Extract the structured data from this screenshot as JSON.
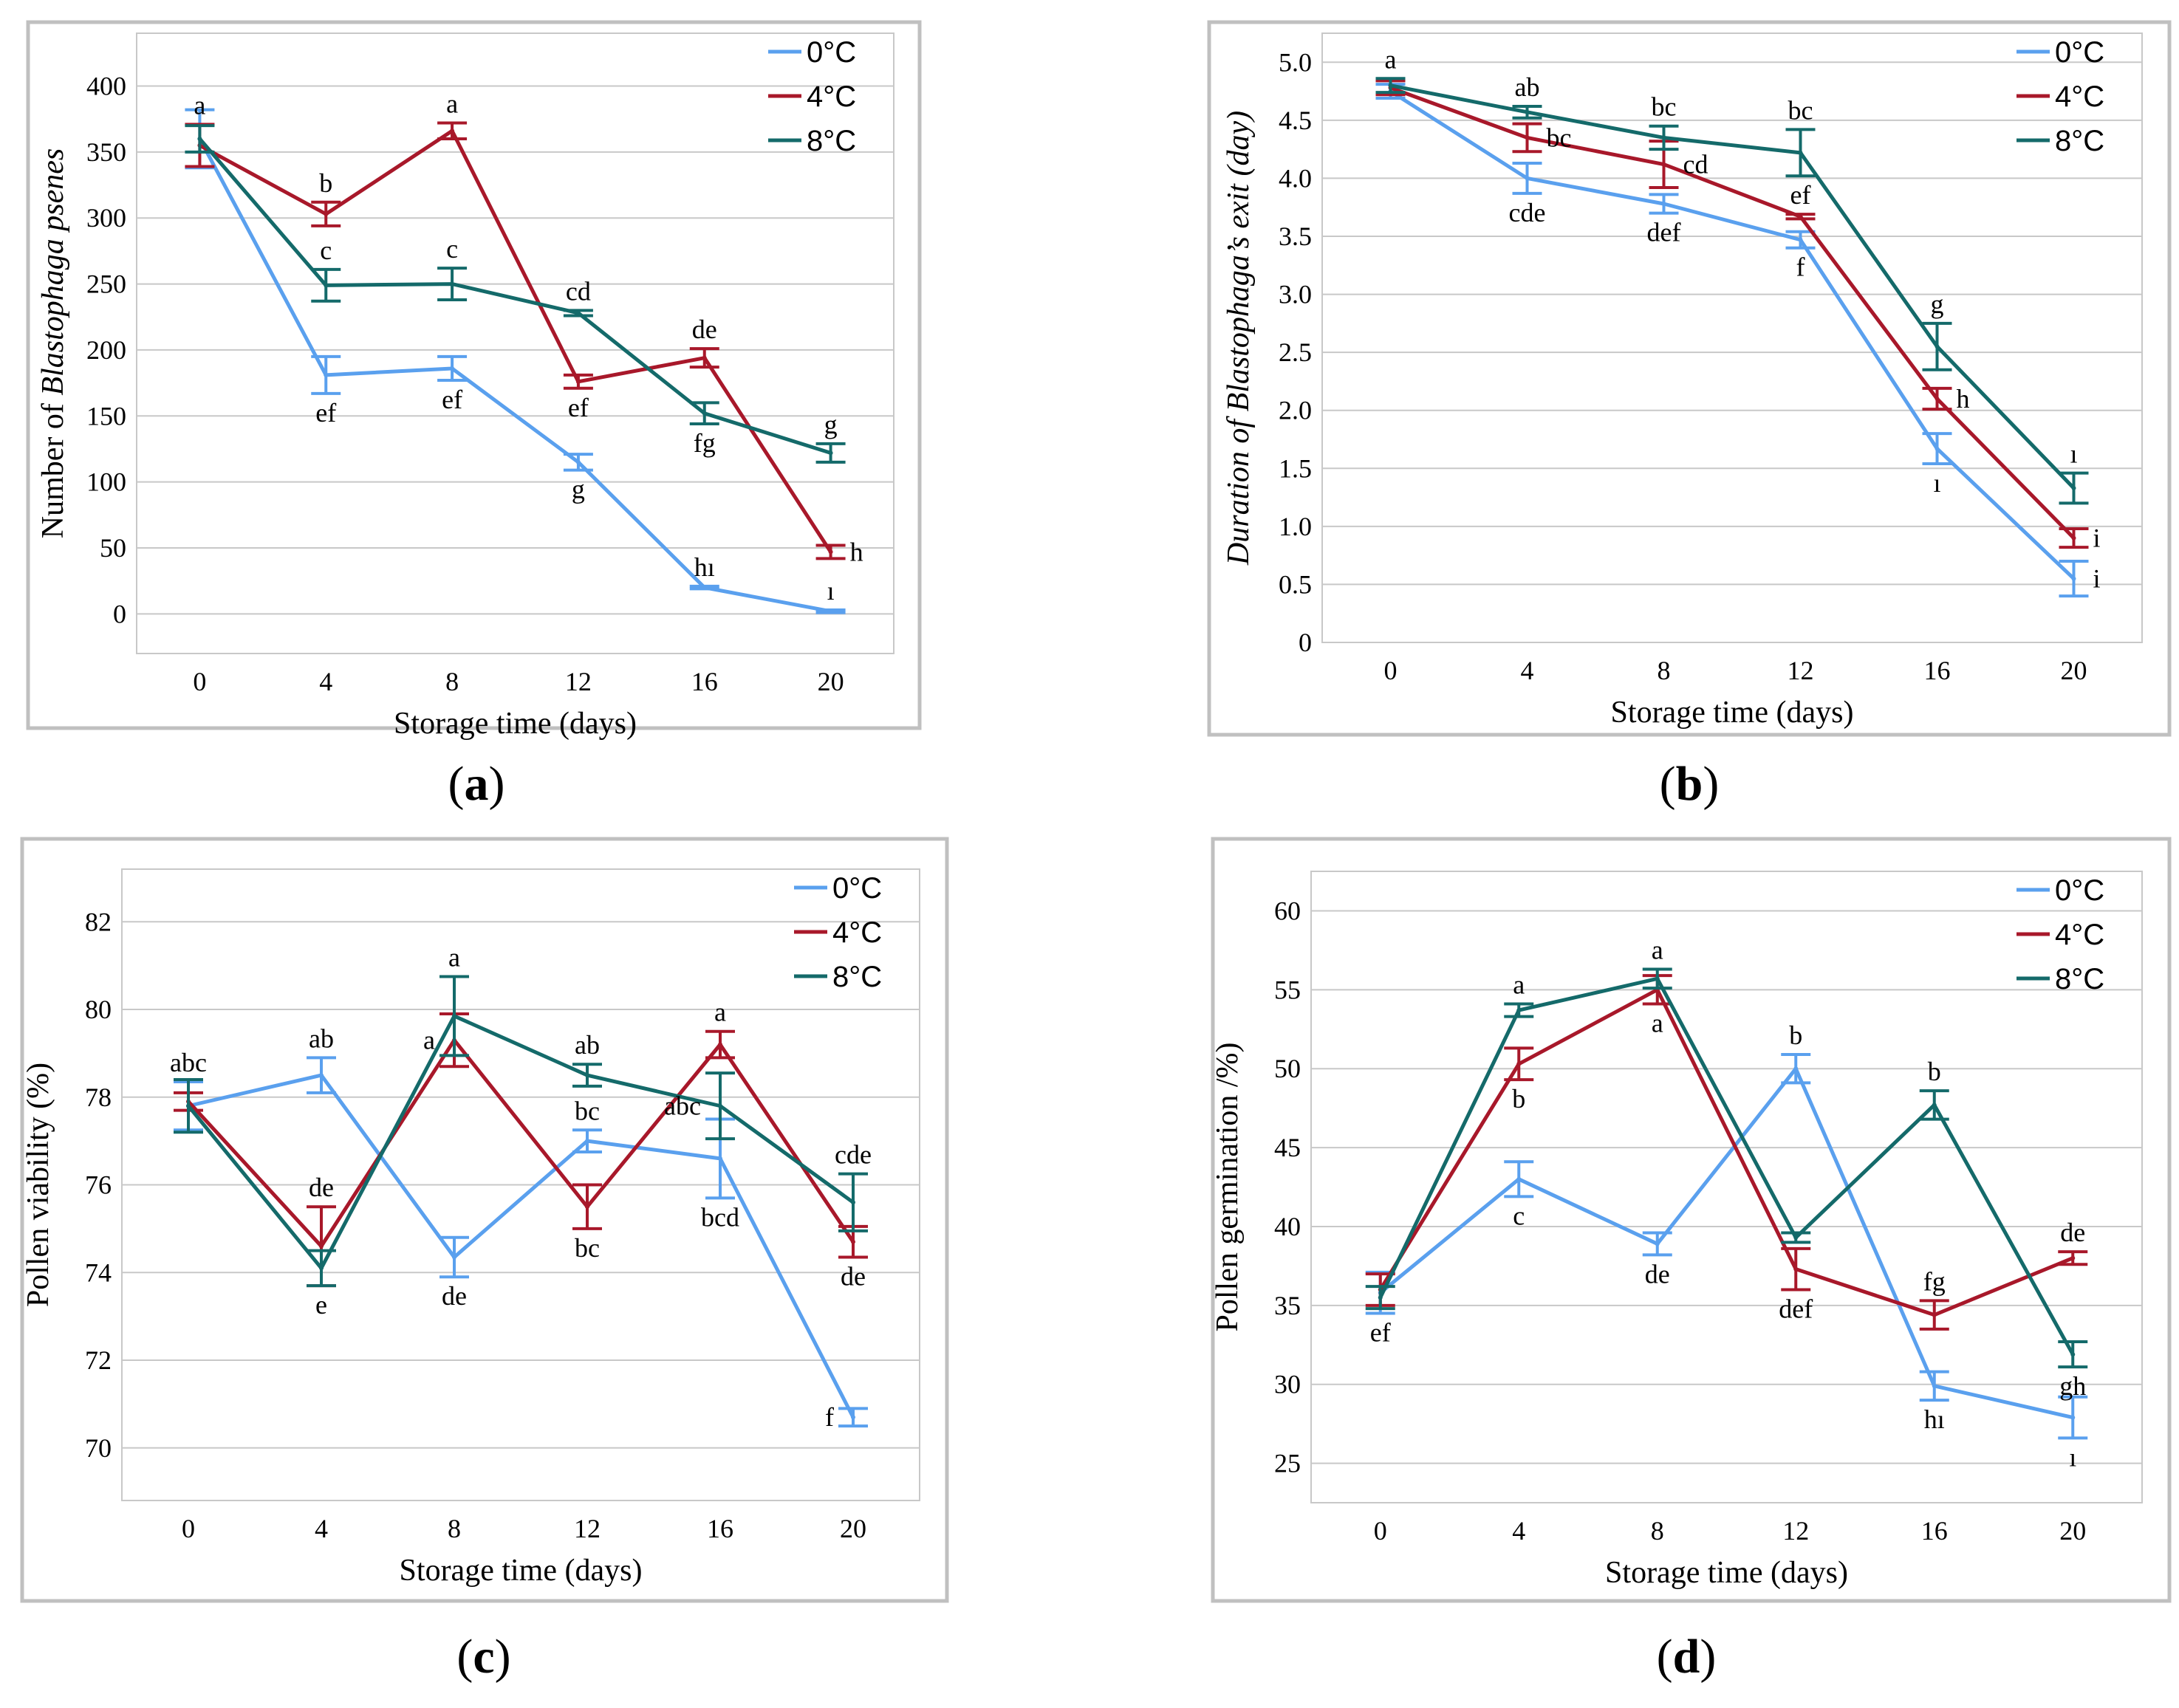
{
  "colors": {
    "0C": "#5aa0ee",
    "4C": "#a8182a",
    "8C": "#146a6a",
    "frame": "#c0c0c0",
    "grid": "#c8c8c8"
  },
  "legend": [
    "0°C",
    "4°C",
    "8°C"
  ],
  "chart_data": [
    {
      "id": "a",
      "type": "line",
      "caption_letter": "a",
      "xlabel": "Storage time (days)",
      "ylabel_parts": [
        [
          "Number of ",
          false
        ],
        [
          "Blastophaga psenes",
          true
        ]
      ],
      "x": [
        0,
        4,
        8,
        12,
        16,
        20
      ],
      "ylim": [
        -30,
        440
      ],
      "yticks": [
        0,
        50,
        100,
        150,
        200,
        250,
        300,
        350,
        400
      ],
      "ytick_labels": [
        "0",
        "50",
        "100",
        "150",
        "200",
        "250",
        "300",
        "350",
        "400"
      ],
      "series": [
        {
          "name": "0°C",
          "color_key": "0C",
          "values": [
            360,
            181,
            186,
            115,
            20,
            2
          ],
          "errors": [
            22,
            14,
            9,
            6,
            1,
            1
          ],
          "letters": [
            {
              "text": "",
              "pos": "above"
            },
            {
              "text": "ef",
              "pos": "below"
            },
            {
              "text": "ef",
              "pos": "below"
            },
            {
              "text": "g",
              "pos": "below"
            },
            {
              "text": "hı",
              "pos": "above"
            },
            {
              "text": "ı",
              "pos": "above"
            }
          ]
        },
        {
          "name": "4°C",
          "color_key": "4C",
          "values": [
            355,
            303,
            366,
            176,
            194,
            47
          ],
          "errors": [
            16,
            9,
            6,
            5,
            7,
            5
          ],
          "letters": [
            {
              "text": "a",
              "pos": "above"
            },
            {
              "text": "b",
              "pos": "above"
            },
            {
              "text": "a",
              "pos": "above"
            },
            {
              "text": "ef",
              "pos": "below"
            },
            {
              "text": "de",
              "pos": "above"
            },
            {
              "text": "h",
              "pos": "right"
            }
          ]
        },
        {
          "name": "8°C",
          "color_key": "8C",
          "values": [
            360,
            249,
            250,
            228,
            152,
            122
          ],
          "errors": [
            10,
            12,
            12,
            2,
            8,
            7
          ],
          "letters": [
            {
              "text": "",
              "pos": "above"
            },
            {
              "text": "c",
              "pos": "above"
            },
            {
              "text": "c",
              "pos": "above"
            },
            {
              "text": "cd",
              "pos": "above"
            },
            {
              "text": "fg",
              "pos": "below"
            },
            {
              "text": "g",
              "pos": "above"
            }
          ]
        }
      ]
    },
    {
      "id": "b",
      "type": "line",
      "caption_letter": "b",
      "xlabel": "Storage time (days)",
      "ylabel_parts": [
        [
          "Duration of Blastophaga’s exit (day)",
          true
        ]
      ],
      "x": [
        0,
        4,
        8,
        12,
        16,
        20
      ],
      "ylim": [
        0,
        5.25
      ],
      "yticks": [
        0,
        0.5,
        1.0,
        1.5,
        2.0,
        2.5,
        3.0,
        3.5,
        4.0,
        4.5,
        5.0
      ],
      "ytick_labels": [
        "0",
        "0.5",
        "1.0",
        "1.5",
        "2.0",
        "2.5",
        "3.0",
        "3.5",
        "4.0",
        "4.5",
        "5.0"
      ],
      "series": [
        {
          "name": "0°C",
          "color_key": "0C",
          "values": [
            4.75,
            4.0,
            3.78,
            3.47,
            1.67,
            0.55
          ],
          "errors": [
            0.06,
            0.13,
            0.08,
            0.07,
            0.13,
            0.15
          ],
          "letters": [
            {
              "text": "",
              "pos": "above"
            },
            {
              "text": "cde",
              "pos": "below"
            },
            {
              "text": "def",
              "pos": "below"
            },
            {
              "text": "f",
              "pos": "below"
            },
            {
              "text": "ı",
              "pos": "below"
            },
            {
              "text": "i",
              "pos": "right"
            }
          ]
        },
        {
          "name": "4°C",
          "color_key": "4C",
          "values": [
            4.78,
            4.35,
            4.12,
            3.67,
            2.1,
            0.9
          ],
          "errors": [
            0.06,
            0.12,
            0.2,
            0.02,
            0.09,
            0.08
          ],
          "letters": [
            {
              "text": "",
              "pos": "above"
            },
            {
              "text": "bc",
              "pos": "right"
            },
            {
              "text": "cd",
              "pos": "right"
            },
            {
              "text": "ef",
              "pos": "above"
            },
            {
              "text": "h",
              "pos": "right"
            },
            {
              "text": "i",
              "pos": "right"
            }
          ]
        },
        {
          "name": "8°C",
          "color_key": "8C",
          "values": [
            4.8,
            4.57,
            4.35,
            4.22,
            2.55,
            1.33
          ],
          "errors": [
            0.06,
            0.05,
            0.1,
            0.2,
            0.2,
            0.13
          ],
          "letters": [
            {
              "text": "a",
              "pos": "above"
            },
            {
              "text": "ab",
              "pos": "above"
            },
            {
              "text": "bc",
              "pos": "above"
            },
            {
              "text": "bc",
              "pos": "above"
            },
            {
              "text": "g",
              "pos": "above"
            },
            {
              "text": "ı",
              "pos": "above"
            }
          ]
        }
      ]
    },
    {
      "id": "c",
      "type": "line",
      "caption_letter": "c",
      "xlabel": "Storage time (days)",
      "ylabel_parts": [
        [
          "Pollen viability (%)",
          false
        ]
      ],
      "x": [
        0,
        4,
        8,
        12,
        16,
        20
      ],
      "ylim": [
        68.8,
        83.2
      ],
      "yticks": [
        70,
        72,
        74,
        76,
        78,
        80,
        82
      ],
      "ytick_labels": [
        "70",
        "72",
        "74",
        "76",
        "78",
        "80",
        "82"
      ],
      "series": [
        {
          "name": "0°C",
          "color_key": "0C",
          "values": [
            77.8,
            78.5,
            74.35,
            77.0,
            76.6,
            70.7
          ],
          "errors": [
            0.55,
            0.4,
            0.45,
            0.25,
            0.9,
            0.2
          ],
          "letters": [
            {
              "text": "abc",
              "pos": "above"
            },
            {
              "text": "ab",
              "pos": "above"
            },
            {
              "text": "de",
              "pos": "below"
            },
            {
              "text": "bc",
              "pos": "above"
            },
            {
              "text": "bcd",
              "pos": "below"
            },
            {
              "text": "f",
              "pos": "left"
            }
          ]
        },
        {
          "name": "4°C",
          "color_key": "4C",
          "values": [
            77.9,
            74.6,
            79.3,
            75.5,
            79.2,
            74.7
          ],
          "errors": [
            0.2,
            0.9,
            0.6,
            0.5,
            0.3,
            0.35
          ],
          "letters": [
            {
              "text": "",
              "pos": "above"
            },
            {
              "text": "de",
              "pos": "above"
            },
            {
              "text": "a",
              "pos": "left"
            },
            {
              "text": "bc",
              "pos": "below"
            },
            {
              "text": "a",
              "pos": "above"
            },
            {
              "text": "de",
              "pos": "below"
            }
          ]
        },
        {
          "name": "8°C",
          "color_key": "8C",
          "values": [
            77.8,
            74.1,
            79.85,
            78.5,
            77.8,
            75.6
          ],
          "errors": [
            0.6,
            0.4,
            0.9,
            0.25,
            0.75,
            0.65
          ],
          "letters": [
            {
              "text": "",
              "pos": "above"
            },
            {
              "text": "e",
              "pos": "below"
            },
            {
              "text": "a",
              "pos": "above"
            },
            {
              "text": "ab",
              "pos": "above"
            },
            {
              "text": "abc",
              "pos": "left"
            },
            {
              "text": "cde",
              "pos": "above"
            }
          ]
        }
      ]
    },
    {
      "id": "d",
      "type": "line",
      "caption_letter": "d",
      "xlabel": "Storage time (days)",
      "ylabel_parts": [
        [
          "Pollen germination /%)",
          false
        ]
      ],
      "x": [
        0,
        4,
        8,
        12,
        16,
        20
      ],
      "ylim": [
        22.5,
        62.5
      ],
      "yticks": [
        25,
        30,
        35,
        40,
        45,
        50,
        55,
        60
      ],
      "ytick_labels": [
        "25",
        "30",
        "35",
        "40",
        "45",
        "50",
        "55",
        "60"
      ],
      "series": [
        {
          "name": "0°C",
          "color_key": "0C",
          "values": [
            35.8,
            43.0,
            38.9,
            50.0,
            29.9,
            27.9
          ],
          "errors": [
            1.3,
            1.1,
            0.7,
            0.9,
            0.9,
            1.3
          ],
          "letters": [
            {
              "text": "ef",
              "pos": "below"
            },
            {
              "text": "c",
              "pos": "below"
            },
            {
              "text": "de",
              "pos": "below"
            },
            {
              "text": "b",
              "pos": "above"
            },
            {
              "text": "hı",
              "pos": "below"
            },
            {
              "text": "ı",
              "pos": "below"
            }
          ]
        },
        {
          "name": "4°C",
          "color_key": "4C",
          "values": [
            36.0,
            50.3,
            55.0,
            37.3,
            34.4,
            38.0
          ],
          "errors": [
            1.0,
            1.0,
            0.9,
            1.3,
            0.9,
            0.4
          ],
          "letters": [
            {
              "text": "",
              "pos": "above"
            },
            {
              "text": "b",
              "pos": "below"
            },
            {
              "text": "a",
              "pos": "below"
            },
            {
              "text": "def",
              "pos": "below"
            },
            {
              "text": "fg",
              "pos": "above"
            },
            {
              "text": "de",
              "pos": "above"
            }
          ]
        },
        {
          "name": "8°C",
          "color_key": "8C",
          "values": [
            35.5,
            53.7,
            55.7,
            39.3,
            47.7,
            31.9
          ],
          "errors": [
            0.7,
            0.4,
            0.6,
            0.3,
            0.9,
            0.8
          ],
          "letters": [
            {
              "text": "",
              "pos": "above"
            },
            {
              "text": "a",
              "pos": "above"
            },
            {
              "text": "a",
              "pos": "above"
            },
            {
              "text": "",
              "pos": "above"
            },
            {
              "text": "b",
              "pos": "above"
            },
            {
              "text": "gh",
              "pos": "below"
            }
          ]
        }
      ]
    }
  ]
}
